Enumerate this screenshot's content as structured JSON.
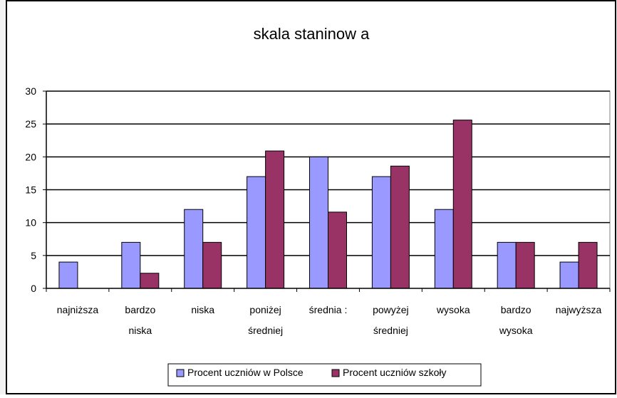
{
  "chart_data": {
    "type": "bar",
    "title": "skala staninow a",
    "categories": [
      [
        "najniższa"
      ],
      [
        "bardzo",
        "niska"
      ],
      [
        "niska"
      ],
      [
        "poniżej",
        "średniej"
      ],
      [
        "średnia :"
      ],
      [
        "powyżej",
        "średniej"
      ],
      [
        "wysoka"
      ],
      [
        "bardzo",
        "wysoka"
      ],
      [
        "najwyższa"
      ]
    ],
    "series": [
      {
        "name": "Procent uczniów w Polsce",
        "color": "#9999ff",
        "values": [
          4,
          7,
          12,
          17,
          20,
          17,
          12,
          7,
          4
        ]
      },
      {
        "name": "Procent uczniów szkoły",
        "color": "#993366",
        "values": [
          0,
          2.3,
          7,
          20.9,
          11.6,
          18.6,
          25.6,
          7,
          7
        ]
      }
    ],
    "ylim": [
      0,
      30
    ],
    "yticks": [
      "0",
      "5",
      "10",
      "15",
      "20",
      "25",
      "30"
    ],
    "grid": true,
    "legend_position": "bottom"
  }
}
